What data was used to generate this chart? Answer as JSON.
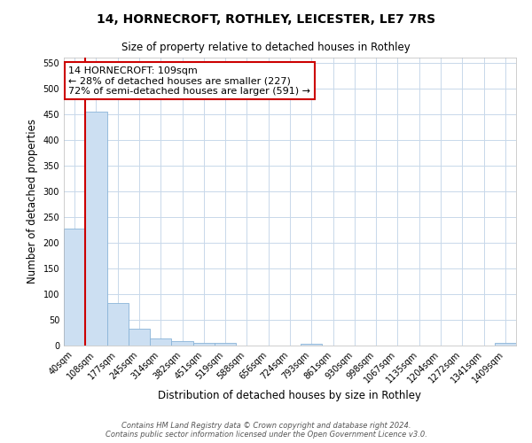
{
  "title": "14, HORNECROFT, ROTHLEY, LEICESTER, LE7 7RS",
  "subtitle": "Size of property relative to detached houses in Rothley",
  "xlabel": "Distribution of detached houses by size in Rothley",
  "ylabel": "Number of detached properties",
  "bar_labels": [
    "40sqm",
    "108sqm",
    "177sqm",
    "245sqm",
    "314sqm",
    "382sqm",
    "451sqm",
    "519sqm",
    "588sqm",
    "656sqm",
    "724sqm",
    "793sqm",
    "861sqm",
    "930sqm",
    "998sqm",
    "1067sqm",
    "1135sqm",
    "1204sqm",
    "1272sqm",
    "1341sqm",
    "1409sqm"
  ],
  "bar_values": [
    228,
    455,
    83,
    32,
    13,
    8,
    6,
    5,
    0,
    0,
    0,
    4,
    0,
    0,
    0,
    0,
    0,
    0,
    0,
    0,
    5
  ],
  "bar_color": "#ccdff2",
  "bar_edge_color": "#8ab4d8",
  "ylim": [
    0,
    560
  ],
  "yticks": [
    0,
    50,
    100,
    150,
    200,
    250,
    300,
    350,
    400,
    450,
    500,
    550
  ],
  "property_line_color": "#cc0000",
  "annotation_box_line1": "14 HORNECROFT: 109sqm",
  "annotation_box_line2": "← 28% of detached houses are smaller (227)",
  "annotation_box_line3": "72% of semi-detached houses are larger (591) →",
  "annotation_box_edge_color": "#cc0000",
  "annotation_box_bg": "#ffffff",
  "footer_line1": "Contains HM Land Registry data © Crown copyright and database right 2024.",
  "footer_line2": "Contains public sector information licensed under the Open Government Licence v3.0.",
  "background_color": "#ffffff",
  "grid_color": "#c8d8ea",
  "title_fontsize": 10,
  "subtitle_fontsize": 8.5,
  "xlabel_fontsize": 8.5,
  "ylabel_fontsize": 8.5,
  "tick_fontsize": 7,
  "annotation_fontsize": 8,
  "footer_fontsize": 6
}
